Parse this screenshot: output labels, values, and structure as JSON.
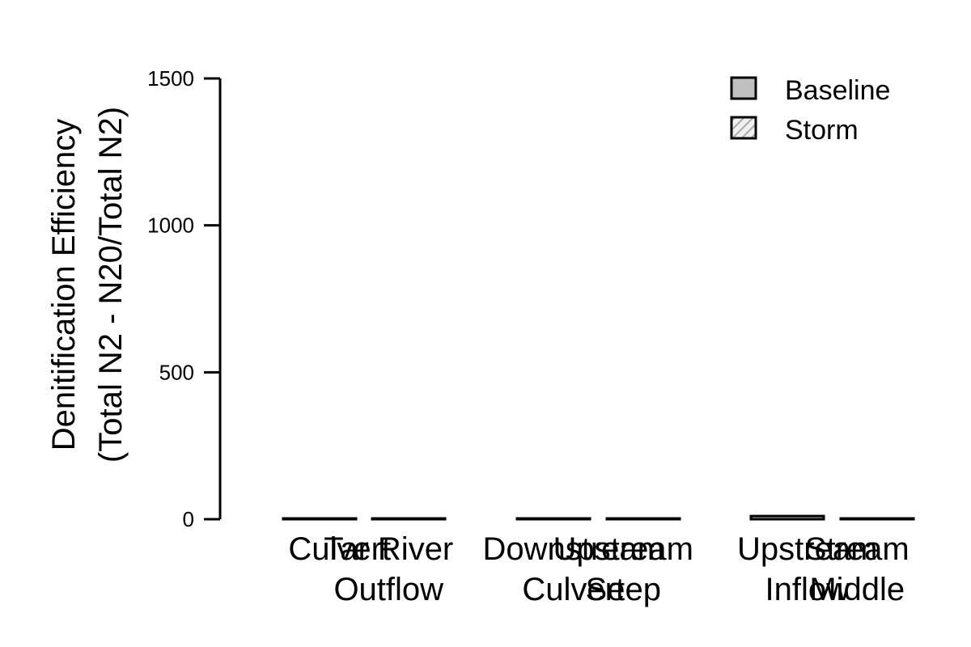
{
  "chart_data": {
    "type": "bar",
    "ylabel_line1": "Denitification Efficiency",
    "ylabel_line2": "(Total N2 - N20/Total N2)",
    "ylim": [
      0,
      1500
    ],
    "yticks": [
      0,
      500,
      1000,
      1500
    ],
    "legend_position": "top-right",
    "grid": false,
    "series": [
      {
        "name": "Baseline",
        "fill": "#c0c0c0",
        "pattern": "solid"
      },
      {
        "name": "Storm",
        "fill": "#dddddd",
        "pattern": "hatch"
      }
    ],
    "bars": [
      {
        "label": [
          "Culvert"
        ],
        "value": 0
      },
      {
        "label": [
          "Tar River",
          "Outflow"
        ],
        "value": 0
      },
      {
        "label": [
          "Downstream",
          "Culvert"
        ],
        "value": 0
      },
      {
        "label": [
          "Upstream",
          "Seep"
        ],
        "value": 0
      },
      {
        "label": [
          "Upstream",
          "Inflow"
        ],
        "value": 8
      },
      {
        "label": [
          "Stream",
          "Middle"
        ],
        "value": 0
      }
    ],
    "colors": {
      "axis": "#000000",
      "background": "#ffffff"
    }
  }
}
